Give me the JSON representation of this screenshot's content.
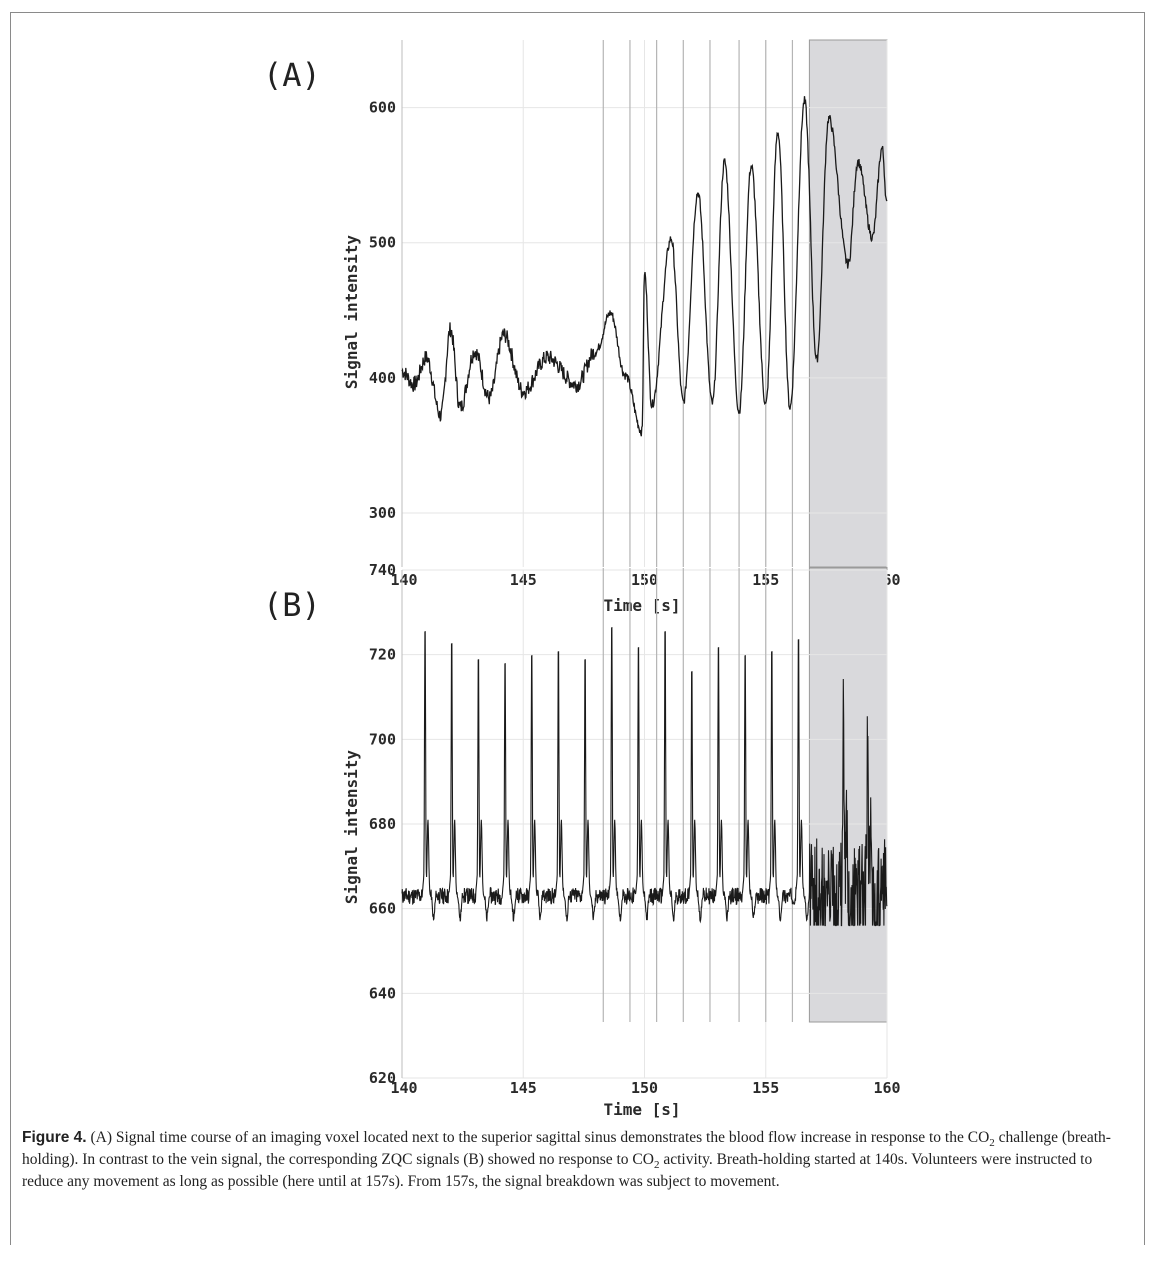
{
  "figure": {
    "caption": {
      "label": "Figure 4.",
      "seg1": " (A) Signal time course of an imaging voxel located next to the superior sagittal sinus demonstrates the blood flow increase in response to the CO",
      "seg2": " challenge (breath-holding). In contrast to the vein signal, the corresponding ZQC signals (B) showed no response to CO",
      "seg3": " activity. Breath-holding started at 140s. Volunteers were instructed to reduce any movement as long as possible (here until at 157s). From 157s, the signal breakdown was subject to movement.",
      "sub": "2"
    }
  },
  "chart_data": [
    {
      "type": "line",
      "panel_label": "(A)",
      "xlabel": "Time [s]",
      "ylabel": "Signal intensity",
      "xlim": [
        140,
        160
      ],
      "ylim": [
        260,
        650
      ],
      "x_ticks": [
        140,
        145,
        150,
        155,
        160
      ],
      "y_ticks": [
        300,
        400,
        500,
        600
      ],
      "grid": true,
      "line_color": "#1a1a1a",
      "marker_lines_x": [
        148.3,
        149.4,
        150.5,
        151.6,
        152.7,
        153.9,
        155.0,
        156.1
      ],
      "shaded_region": {
        "x": [
          156.8,
          160.0
        ],
        "color": "#d9d9dc"
      },
      "baseline_samples": [
        {
          "x": 140.0,
          "y": 405
        },
        {
          "x": 140.5,
          "y": 395
        },
        {
          "x": 141.0,
          "y": 415
        },
        {
          "x": 141.6,
          "y": 372
        },
        {
          "x": 142.0,
          "y": 436
        },
        {
          "x": 142.4,
          "y": 378
        },
        {
          "x": 143.0,
          "y": 420
        },
        {
          "x": 143.6,
          "y": 385
        },
        {
          "x": 144.2,
          "y": 432
        },
        {
          "x": 145.0,
          "y": 390
        },
        {
          "x": 146.0,
          "y": 415
        },
        {
          "x": 147.2,
          "y": 395
        },
        {
          "x": 148.0,
          "y": 420
        },
        {
          "x": 148.6,
          "y": 448
        },
        {
          "x": 149.2,
          "y": 402
        },
        {
          "x": 149.9,
          "y": 360
        },
        {
          "x": 150.0,
          "y": 478
        },
        {
          "x": 150.3,
          "y": 380
        },
        {
          "x": 151.1,
          "y": 503
        },
        {
          "x": 151.6,
          "y": 382
        },
        {
          "x": 152.2,
          "y": 537
        },
        {
          "x": 152.8,
          "y": 381
        },
        {
          "x": 153.3,
          "y": 560
        },
        {
          "x": 153.9,
          "y": 375
        },
        {
          "x": 154.4,
          "y": 557
        },
        {
          "x": 155.0,
          "y": 380
        },
        {
          "x": 155.5,
          "y": 582
        },
        {
          "x": 156.0,
          "y": 378
        },
        {
          "x": 156.6,
          "y": 605
        },
        {
          "x": 157.1,
          "y": 413
        },
        {
          "x": 157.6,
          "y": 592
        },
        {
          "x": 158.4,
          "y": 484
        },
        {
          "x": 158.8,
          "y": 560
        },
        {
          "x": 159.4,
          "y": 504
        },
        {
          "x": 159.8,
          "y": 570
        },
        {
          "x": 160.0,
          "y": 528
        }
      ]
    },
    {
      "type": "line",
      "panel_label": "(B)",
      "xlabel": "Time [s]",
      "ylabel": "Signal intensity",
      "xlim": [
        140,
        160
      ],
      "ylim": [
        620,
        740
      ],
      "x_ticks": [
        140,
        145,
        150,
        155,
        160
      ],
      "y_ticks": [
        620,
        640,
        660,
        680,
        700,
        720,
        740
      ],
      "grid": true,
      "line_color": "#1a1a1a",
      "baseline": 663,
      "spike_peaks": [
        {
          "x": 140.95,
          "y": 729
        },
        {
          "x": 142.05,
          "y": 726
        },
        {
          "x": 143.15,
          "y": 722
        },
        {
          "x": 144.25,
          "y": 721
        },
        {
          "x": 145.35,
          "y": 723
        },
        {
          "x": 146.45,
          "y": 724
        },
        {
          "x": 147.55,
          "y": 722
        },
        {
          "x": 148.65,
          "y": 730
        },
        {
          "x": 149.75,
          "y": 725
        },
        {
          "x": 150.85,
          "y": 729
        },
        {
          "x": 151.95,
          "y": 719
        },
        {
          "x": 153.05,
          "y": 725
        },
        {
          "x": 154.15,
          "y": 723
        },
        {
          "x": 155.25,
          "y": 724
        },
        {
          "x": 156.35,
          "y": 727
        },
        {
          "x": 158.2,
          "y": 718
        },
        {
          "x": 159.2,
          "y": 705
        }
      ],
      "troughs_min": 656,
      "marker_lines_x": [
        148.3,
        149.4,
        150.5,
        151.6,
        152.7,
        153.9,
        155.0,
        156.1
      ],
      "shaded_region": {
        "x": [
          156.8,
          160.0
        ],
        "color": "#d9d9dc"
      }
    }
  ]
}
